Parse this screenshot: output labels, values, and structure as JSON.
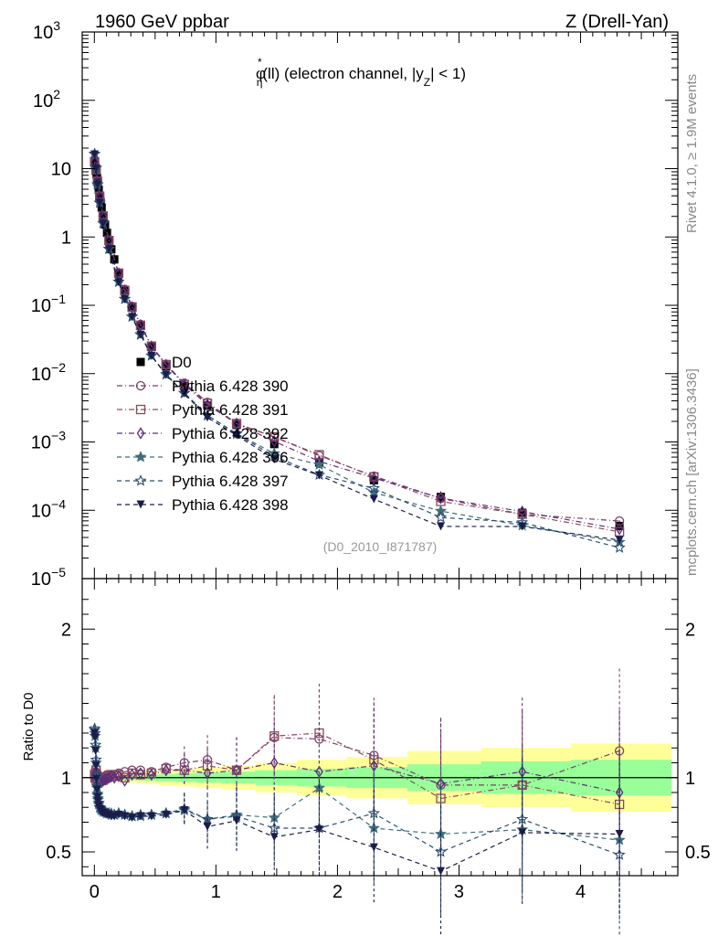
{
  "header": {
    "left": "1960 GeV ppbar",
    "right": "Z (Drell-Yan)",
    "side_top": "Rivet 4.1.0, ≥ 1.9M events",
    "side_bottom": "mcplots.cern.ch [arXiv:1306.3436]"
  },
  "chart_data": [
    {
      "type": "line",
      "panel": "main",
      "title_parts": {
        "phi": "φ",
        "sub": "η",
        "sup": "*",
        "after_phi": "(ll) (electron channel, |y",
        "y_sub": "Z",
        "tail": "| < 1)"
      },
      "annotation": "(D0_2010_I871787)",
      "xlim": [
        -0.1,
        4.8
      ],
      "ylim": [
        1e-05,
        1000
      ],
      "yscale": "log",
      "ytick_labels": [
        {
          "value": 1000,
          "base": "10",
          "exp": "3"
        },
        {
          "value": 100,
          "base": "10",
          "exp": "2"
        },
        {
          "value": 10,
          "base": "10",
          "exp": ""
        },
        {
          "value": 1,
          "base": "1",
          "exp": ""
        },
        {
          "value": 0.1,
          "base": "10",
          "exp": "−1"
        },
        {
          "value": 0.01,
          "base": "10",
          "exp": "−2"
        },
        {
          "value": 0.001,
          "base": "10",
          "exp": "−3"
        },
        {
          "value": 0.0001,
          "base": "10",
          "exp": "−4"
        },
        {
          "value": 1e-05,
          "base": "10",
          "exp": "−5"
        }
      ],
      "x": [
        0.002,
        0.006,
        0.01,
        0.014,
        0.018,
        0.022,
        0.026,
        0.03,
        0.036,
        0.044,
        0.052,
        0.06,
        0.072,
        0.088,
        0.104,
        0.12,
        0.14,
        0.164,
        0.2,
        0.25,
        0.31,
        0.38,
        0.47,
        0.59,
        0.74,
        0.93,
        1.17,
        1.48,
        1.85,
        2.3,
        2.85,
        3.52,
        4.32
      ],
      "data_values": [
        12.4,
        11.2,
        10.3,
        9.2,
        8.2,
        7.3,
        6.6,
        5.8,
        4.9,
        3.95,
        3.25,
        2.7,
        2.05,
        1.52,
        1.15,
        0.88,
        0.66,
        0.47,
        0.29,
        0.165,
        0.092,
        0.05,
        0.0245,
        0.0128,
        0.0066,
        0.0034,
        0.00177,
        0.00093,
        0.0005,
        0.000275,
        0.000157,
        9.2e-05,
        5.9e-05
      ],
      "series": [
        {
          "name": "D0",
          "color": "#000000",
          "marker": "square-filled",
          "dash": ""
        },
        {
          "name": "Pythia 6.428 390",
          "color": "#7a3e6b",
          "marker": "circle-open",
          "dash": "6,3,1,3",
          "ratio": [
            1.0,
            0.98,
            1.04,
            1.06,
            1.03,
            1.01,
            1.0,
            0.99,
            1.0,
            1.01,
            0.99,
            0.98,
            1.0,
            1.01,
            1.02,
            1.01,
            1.02,
            1.02,
            1.03,
            1.04,
            1.05,
            1.05,
            1.04,
            1.07,
            1.1,
            1.12,
            1.05,
            1.27,
            1.26,
            1.15,
            0.95,
            0.95,
            1.18
          ]
        },
        {
          "name": "Pythia 6.428 391",
          "color": "#8a4a5b",
          "marker": "square-open",
          "dash": "6,3,1,3",
          "ratio": [
            1.02,
            1.0,
            1.03,
            1.05,
            1.02,
            1.0,
            0.99,
            0.98,
            0.99,
            1.0,
            0.99,
            0.98,
            0.99,
            1.0,
            1.0,
            1.01,
            1.02,
            1.01,
            1.02,
            1.0,
            1.03,
            1.02,
            1.03,
            1.06,
            1.05,
            1.08,
            1.05,
            1.28,
            1.3,
            1.12,
            0.86,
            0.95,
            0.82
          ]
        },
        {
          "name": "Pythia 6.428 392",
          "color": "#5e2d7a",
          "marker": "diamond-open",
          "dash": "6,3,1,3",
          "ratio": [
            1.01,
            0.99,
            1.02,
            1.04,
            1.01,
            0.99,
            0.98,
            0.98,
            0.99,
            1.0,
            0.98,
            0.97,
            0.98,
            0.99,
            0.99,
            1.0,
            1.01,
            1.0,
            1.01,
            0.98,
            1.02,
            1.03,
            1.02,
            1.05,
            1.05,
            1.03,
            1.05,
            1.1,
            1.04,
            1.08,
            0.96,
            1.04,
            0.9
          ]
        },
        {
          "name": "Pythia 6.428 396",
          "color": "#3f6e7a",
          "marker": "star-filled",
          "dash": "5,4",
          "ratio": [
            1.32,
            1.28,
            1.2,
            1.1,
            1.0,
            0.93,
            0.88,
            0.85,
            0.82,
            0.8,
            0.79,
            0.78,
            0.77,
            0.77,
            0.76,
            0.76,
            0.76,
            0.75,
            0.76,
            0.75,
            0.74,
            0.74,
            0.75,
            0.76,
            0.78,
            0.72,
            0.75,
            0.73,
            0.93,
            0.66,
            0.62,
            0.65,
            0.58
          ]
        },
        {
          "name": "Pythia 6.428 397",
          "color": "#2a4e70",
          "marker": "star-open",
          "dash": "5,4",
          "ratio": [
            1.33,
            1.3,
            1.22,
            1.12,
            1.02,
            0.94,
            0.89,
            0.86,
            0.83,
            0.8,
            0.79,
            0.78,
            0.78,
            0.77,
            0.76,
            0.76,
            0.75,
            0.75,
            0.76,
            0.75,
            0.74,
            0.75,
            0.75,
            0.76,
            0.79,
            0.72,
            0.74,
            0.66,
            0.66,
            0.76,
            0.5,
            0.72,
            0.48
          ]
        },
        {
          "name": "Pythia 6.428 398",
          "color": "#1c1c4a",
          "marker": "triangle-down-filled",
          "dash": "5,4",
          "ratio": [
            1.3,
            1.27,
            1.18,
            1.08,
            0.99,
            0.92,
            0.87,
            0.84,
            0.81,
            0.79,
            0.78,
            0.77,
            0.76,
            0.76,
            0.75,
            0.75,
            0.74,
            0.74,
            0.75,
            0.74,
            0.73,
            0.74,
            0.74,
            0.75,
            0.78,
            0.67,
            0.71,
            0.6,
            0.65,
            0.53,
            0.37,
            0.63,
            0.62
          ]
        }
      ]
    },
    {
      "type": "line",
      "panel": "ratio",
      "ylabel": "Ratio to D0",
      "xlim": [
        -0.1,
        4.8
      ],
      "ylim": [
        0.34,
        2.34
      ],
      "yticks": [
        0.5,
        1,
        2
      ],
      "ytick_labels": [
        "0.5",
        "1",
        "2"
      ],
      "xticks": [
        0,
        1,
        2,
        3,
        4
      ],
      "xtick_labels": [
        "0",
        "1",
        "2",
        "3",
        "4"
      ],
      "band_green_halfwidth": [
        0.005,
        0.005,
        0.005,
        0.006,
        0.006,
        0.006,
        0.007,
        0.007,
        0.007,
        0.008,
        0.008,
        0.008,
        0.009,
        0.009,
        0.01,
        0.01,
        0.011,
        0.012,
        0.013,
        0.015,
        0.017,
        0.019,
        0.022,
        0.025,
        0.03,
        0.035,
        0.04,
        0.05,
        0.06,
        0.07,
        0.09,
        0.11,
        0.12
      ],
      "band_yellow_halfwidth": [
        0.01,
        0.01,
        0.01,
        0.012,
        0.012,
        0.012,
        0.014,
        0.014,
        0.014,
        0.016,
        0.016,
        0.016,
        0.018,
        0.018,
        0.02,
        0.02,
        0.022,
        0.024,
        0.026,
        0.03,
        0.034,
        0.038,
        0.044,
        0.05,
        0.06,
        0.07,
        0.08,
        0.1,
        0.12,
        0.14,
        0.18,
        0.2,
        0.23
      ]
    }
  ]
}
